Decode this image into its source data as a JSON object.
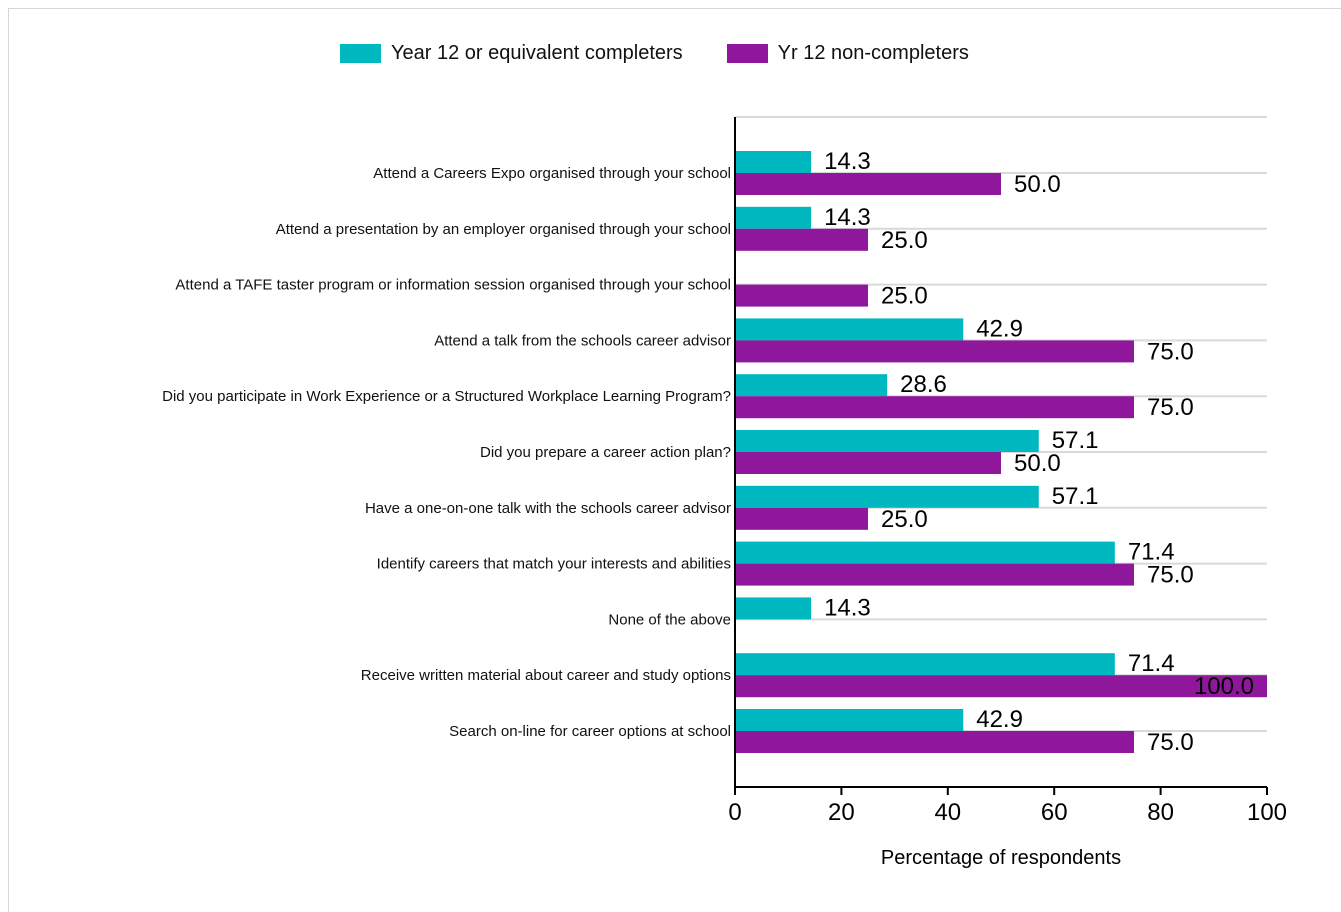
{
  "colors": {
    "completers": "#00b8bf",
    "non_completers": "#8f179b",
    "grid": "#d9d9d9",
    "axis": "#000000"
  },
  "legend": {
    "completers": "Year 12 or equivalent completers",
    "non_completers": "Yr 12 non-completers"
  },
  "chart_data": {
    "type": "bar",
    "orientation": "horizontal",
    "categories": [
      "Attend a Careers Expo organised through your school",
      "Attend a presentation by an employer organised through your school",
      "Attend a TAFE taster program or information session organised through your school",
      "Attend a talk from the schools career advisor",
      "Did you participate in Work Experience or a Structured Workplace Learning Program?",
      "Did you prepare a career action plan?",
      "Have a one-on-one talk with the schools career advisor",
      "Identify careers that match your interests and abilities",
      "None of the above",
      "Receive written material about career and study options",
      "Search on-line for career options at school"
    ],
    "series": [
      {
        "name": "Year 12 or equivalent completers",
        "values": [
          14.3,
          14.3,
          null,
          42.9,
          28.6,
          57.1,
          57.1,
          71.4,
          14.3,
          71.4,
          42.9
        ]
      },
      {
        "name": "Yr 12 non-completers",
        "values": [
          50.0,
          25.0,
          25.0,
          75.0,
          75.0,
          50.0,
          25.0,
          75.0,
          null,
          100.0,
          75.0
        ]
      }
    ],
    "xlabel": "Percentage of respondents",
    "xlim": [
      0,
      100
    ],
    "xticks": [
      "0",
      "20",
      "40",
      "60",
      "80",
      "100"
    ],
    "grid": true,
    "legend_position": "top"
  }
}
